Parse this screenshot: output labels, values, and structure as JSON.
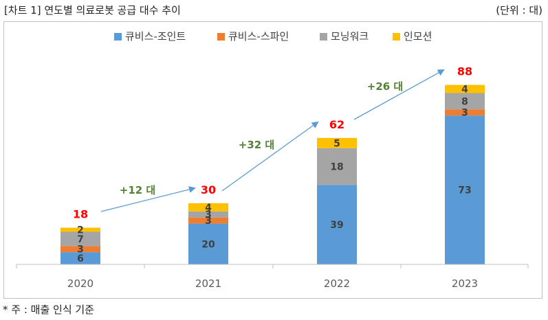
{
  "header": {
    "title": "[차트 1] 연도별 의료로봇 공급 대수 추이",
    "unit": "(단위 : 대)"
  },
  "footer": {
    "note": "* 주 : 매출 인식 기준"
  },
  "chart_data": {
    "type": "bar",
    "stacked": true,
    "categories": [
      "2020",
      "2021",
      "2022",
      "2023"
    ],
    "series": [
      {
        "name": "큐비스-조인트",
        "color": "#5b9bd5",
        "values": [
          6,
          20,
          39,
          73
        ]
      },
      {
        "name": "큐비스-스파인",
        "color": "#ed7d31",
        "values": [
          3,
          3,
          0,
          3
        ]
      },
      {
        "name": "모닝워크",
        "color": "#a5a5a5",
        "values": [
          7,
          3,
          18,
          8
        ]
      },
      {
        "name": "인모션",
        "color": "#ffc000",
        "values": [
          2,
          4,
          5,
          4
        ]
      }
    ],
    "totals": [
      18,
      30,
      62,
      88
    ],
    "growth_labels": [
      "+12 대",
      "+32 대",
      "+26 대"
    ],
    "ylim": [
      0,
      100
    ],
    "legend_position": "top",
    "grid": false,
    "total_color": "#ff0000",
    "growth_color": "#548235",
    "arrow_color": "#5b9bd5"
  }
}
